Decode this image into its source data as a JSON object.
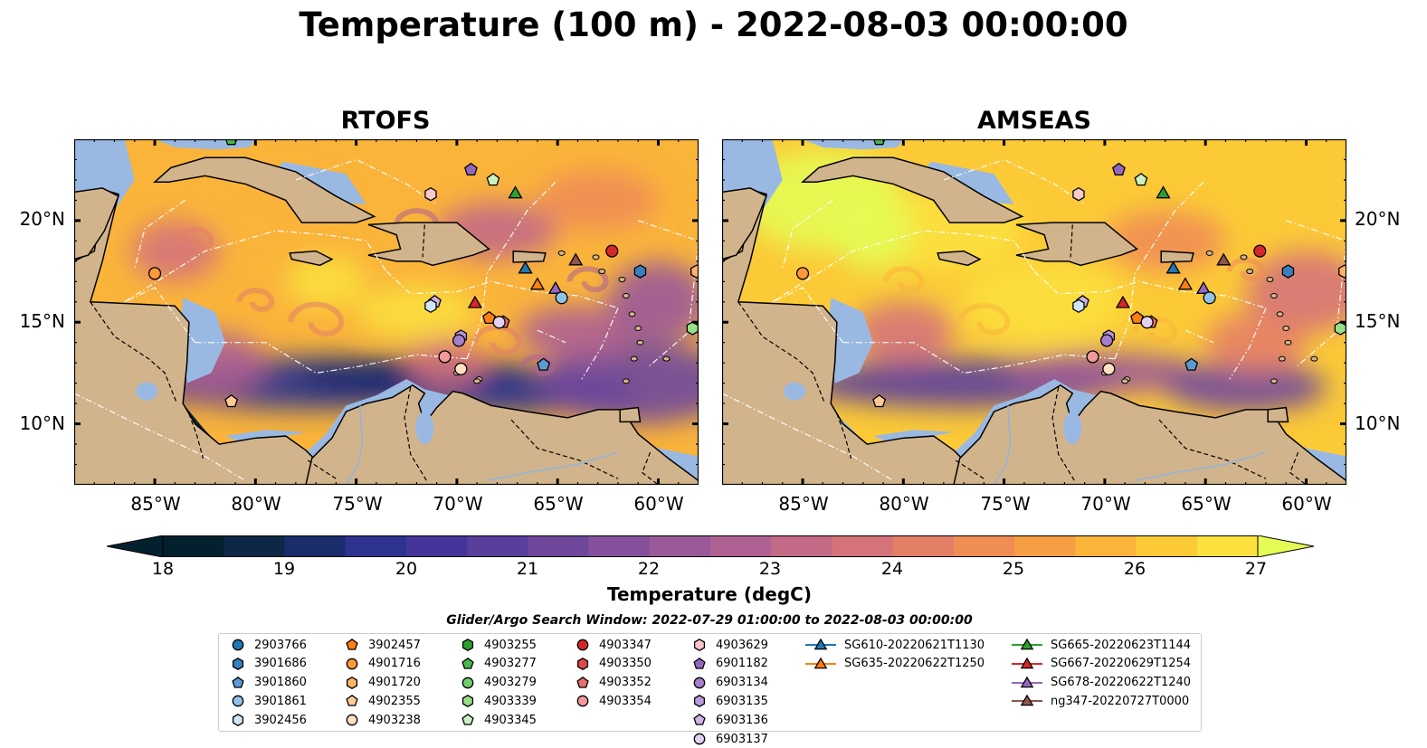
{
  "title": "Temperature (100 m) - 2022-08-03 00:00:00",
  "panels": [
    {
      "title": "RTOFS",
      "variant": "rtofs"
    },
    {
      "title": "AMSEAS",
      "variant": "amseas"
    }
  ],
  "axes": {
    "lat_labels": [
      "20°N",
      "15°N",
      "10°N"
    ],
    "lat_values": [
      20,
      15,
      10
    ],
    "lon_labels": [
      "85°W",
      "80°W",
      "75°W",
      "70°W",
      "65°W",
      "60°W"
    ],
    "lon_values": [
      -85,
      -80,
      -75,
      -70,
      -65,
      -60
    ],
    "lon_range": [
      -89,
      -58
    ],
    "lat_range": [
      7,
      24
    ]
  },
  "colorbar": {
    "label": "Temperature (degC)",
    "ticks": [
      "18",
      "19",
      "20",
      "21",
      "22",
      "23",
      "24",
      "25",
      "26",
      "27"
    ],
    "range": [
      18,
      27
    ],
    "extend": "both",
    "colors": [
      "#03202f",
      "#0e2746",
      "#1b2c6b",
      "#2e338f",
      "#43359a",
      "#5a3e9c",
      "#6f489c",
      "#85519c",
      "#9a5a99",
      "#ae6192",
      "#c36a87",
      "#d5737a",
      "#e47f67",
      "#ef8d55",
      "#f69e44",
      "#fab43a",
      "#fcca37",
      "#fbe03e",
      "#e6fb55"
    ]
  },
  "search_window": "Glider/Argo Search Window: 2022-07-29 01:00:00 to 2022-08-03 00:00:00",
  "legend": [
    {
      "label": "2903766",
      "marker": "circle",
      "color": "#1f77b4"
    },
    {
      "label": "3901686",
      "marker": "hexagon",
      "color": "#3a7fc0"
    },
    {
      "label": "3901860",
      "marker": "pentagon",
      "color": "#5b9bd5"
    },
    {
      "label": "3901861",
      "marker": "circle",
      "color": "#8fc3ea"
    },
    {
      "label": "3902456",
      "marker": "hexagon",
      "color": "#cfe6f7"
    },
    {
      "label": "3902457",
      "marker": "pentagon",
      "color": "#ff7f0e"
    },
    {
      "label": "4901716",
      "marker": "circle",
      "color": "#ff9a3c"
    },
    {
      "label": "4901720",
      "marker": "hexagon",
      "color": "#ffb26b"
    },
    {
      "label": "4902355",
      "marker": "pentagon",
      "color": "#ffc896"
    },
    {
      "label": "4903238",
      "marker": "circle",
      "color": "#ffe0c2"
    },
    {
      "label": "4903255",
      "marker": "hexagon",
      "color": "#2ca02c"
    },
    {
      "label": "4903277",
      "marker": "pentagon",
      "color": "#4cb84c"
    },
    {
      "label": "4903279",
      "marker": "circle",
      "color": "#6fcd6f"
    },
    {
      "label": "4903339",
      "marker": "hexagon",
      "color": "#98df8a"
    },
    {
      "label": "4903345",
      "marker": "pentagon",
      "color": "#c9f2c0"
    },
    {
      "label": "4903347",
      "marker": "circle",
      "color": "#d62728"
    },
    {
      "label": "4903350",
      "marker": "hexagon",
      "color": "#e04a4a"
    },
    {
      "label": "4903352",
      "marker": "pentagon",
      "color": "#eb6e6e"
    },
    {
      "label": "4903354",
      "marker": "circle",
      "color": "#f29a9a"
    },
    {
      "label": "4903629",
      "marker": "hexagon",
      "color": "#fac8c8"
    },
    {
      "label": "6901182",
      "marker": "pentagon",
      "color": "#9467bd"
    },
    {
      "label": "6903134",
      "marker": "circle",
      "color": "#a57fcc"
    },
    {
      "label": "6903135",
      "marker": "hexagon",
      "color": "#b899d9"
    },
    {
      "label": "6903136",
      "marker": "pentagon",
      "color": "#cdb3e6"
    },
    {
      "label": "6903137",
      "marker": "circle",
      "color": "#e3d1f2"
    },
    {
      "label": "SG610-20220621T1130",
      "marker": "triangle-line",
      "color": "#1f77b4"
    },
    {
      "label": "SG635-20220622T1250",
      "marker": "triangle-line",
      "color": "#ff7f0e"
    },
    {
      "label": "SG665-20220623T1144",
      "marker": "triangle-line",
      "color": "#2ca02c"
    },
    {
      "label": "SG667-20220629T1254",
      "marker": "triangle-line",
      "color": "#d62728"
    },
    {
      "label": "SG678-20220622T1240",
      "marker": "triangle-line",
      "color": "#9467bd"
    },
    {
      "label": "ng347-20220727T0000",
      "marker": "triangle-line",
      "color": "#8c564b"
    }
  ],
  "map_colors": {
    "land": "#d2b48c",
    "ocean": "#99b9e3",
    "deep": "#05212f"
  },
  "markers": [
    {
      "id": "4901716",
      "lon": -85,
      "lat": 17.4
    },
    {
      "id": "4902355",
      "lon": -81.2,
      "lat": 11.1
    },
    {
      "id": "4903277",
      "lon": -81.2,
      "lat": 24
    },
    {
      "id": "6901182",
      "lon": -69.3,
      "lat": 22.5
    },
    {
      "id": "4903345",
      "lon": -68.2,
      "lat": 22
    },
    {
      "id": "4903629",
      "lon": -71.3,
      "lat": 21.3
    },
    {
      "id": "SG665-20220623T1144",
      "lon": -67.1,
      "lat": 21.3
    },
    {
      "id": "4903347",
      "lon": -62.3,
      "lat": 18.5
    },
    {
      "id": "3901686",
      "lon": -60.9,
      "lat": 17.5
    },
    {
      "id": "4901720",
      "lon": -58.1,
      "lat": 17.5
    },
    {
      "id": "SG610-20220621T1130",
      "lon": -66.6,
      "lat": 17.6
    },
    {
      "id": "ng347-20220727T0000",
      "lon": -64.1,
      "lat": 18
    },
    {
      "id": "SG635-20220622T1250",
      "lon": -66,
      "lat": 16.8
    },
    {
      "id": "SG678-20220622T1240",
      "lon": -65.1,
      "lat": 16.6
    },
    {
      "id": "3901861",
      "lon": -64.8,
      "lat": 16.2
    },
    {
      "id": "SG667-20220629T1254",
      "lon": -69.1,
      "lat": 15.9
    },
    {
      "id": "6903136",
      "lon": -71.1,
      "lat": 16
    },
    {
      "id": "3902456",
      "lon": -71.3,
      "lat": 15.8
    },
    {
      "id": "3902457",
      "lon": -68.4,
      "lat": 15.2
    },
    {
      "id": "4903352",
      "lon": -67.7,
      "lat": 15
    },
    {
      "id": "6903137",
      "lon": -67.9,
      "lat": 15
    },
    {
      "id": "6903135",
      "lon": -69.8,
      "lat": 14.3
    },
    {
      "id": "6903134",
      "lon": -69.9,
      "lat": 14.1
    },
    {
      "id": "4903354",
      "lon": -70.6,
      "lat": 13.3
    },
    {
      "id": "4903238",
      "lon": -69.8,
      "lat": 12.7
    },
    {
      "id": "3901860",
      "lon": -65.7,
      "lat": 12.9
    },
    {
      "id": "4903339",
      "lon": -58.3,
      "lat": 14.7
    }
  ]
}
